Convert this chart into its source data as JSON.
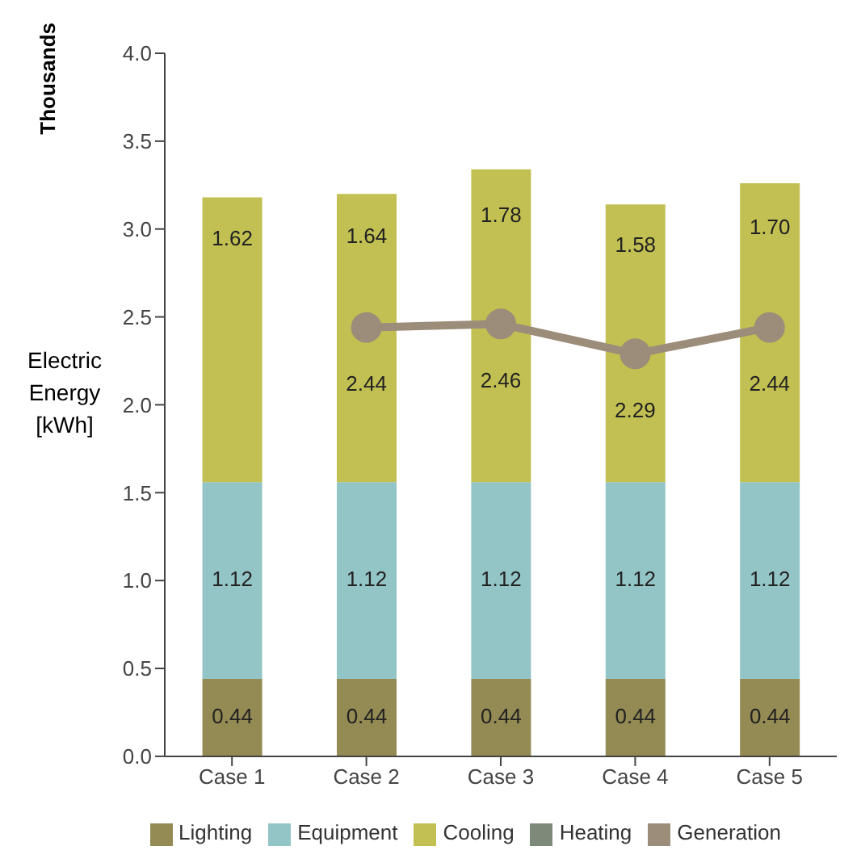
{
  "chart_data": {
    "type": "bar",
    "stacked": true,
    "ylabel": "Electric Energy [kWh]",
    "annotations": [
      "Thousands"
    ],
    "categories": [
      "Case 1",
      "Case 2",
      "Case 3",
      "Case 4",
      "Case 5"
    ],
    "series": [
      {
        "name": "Lighting",
        "color": "#948a54",
        "values": [
          0.44,
          0.44,
          0.44,
          0.44,
          0.44
        ]
      },
      {
        "name": "Equipment",
        "color": "#93c4c6",
        "values": [
          1.12,
          1.12,
          1.12,
          1.12,
          1.12
        ]
      },
      {
        "name": "Cooling",
        "color": "#c2c052",
        "values": [
          1.62,
          1.64,
          1.78,
          1.58,
          1.7
        ],
        "value_labels": [
          "1.62",
          "1.64",
          "1.78",
          "1.58",
          "1.70"
        ]
      },
      {
        "name": "Heating",
        "color": "#7d8a7a",
        "values": [
          0,
          0,
          0,
          0,
          0
        ],
        "value_labels": [
          null,
          null,
          null,
          null,
          null
        ]
      },
      {
        "name": "Generation",
        "type": "line",
        "color": "#9c8c7a",
        "marker": "circle",
        "values": [
          null,
          2.44,
          2.46,
          2.29,
          2.44
        ]
      }
    ],
    "ylim": [
      0,
      4
    ],
    "yticks": [
      {
        "value": 0,
        "label": "0.0"
      },
      0.5,
      {
        "value": 1,
        "label": "1.0"
      },
      1.5,
      {
        "value": 2,
        "label": "2.0"
      },
      2.5,
      {
        "value": 3,
        "label": "3.0"
      },
      3.5,
      {
        "value": 4,
        "label": "4.0"
      }
    ],
    "data_labels": true,
    "grid": false,
    "legend": "bottom"
  }
}
